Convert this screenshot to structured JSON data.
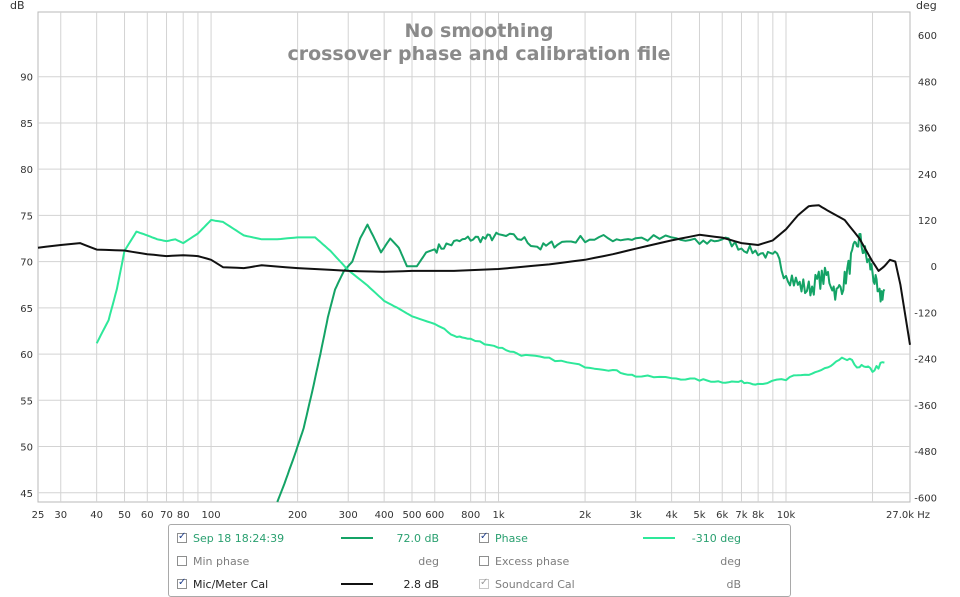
{
  "title": {
    "line1": "No smoothing",
    "line2": "crossover phase and calibration file"
  },
  "left_unit": "dB",
  "right_unit": "deg",
  "chart_data": {
    "type": "line",
    "x_scale": "log",
    "xlim": [
      25,
      27000
    ],
    "ylim_left": [
      44,
      97
    ],
    "ylim_right": [
      -612,
      660
    ],
    "x_ticks": [
      {
        "v": 25,
        "label": "25"
      },
      {
        "v": 30,
        "label": "30"
      },
      {
        "v": 40,
        "label": "40"
      },
      {
        "v": 50,
        "label": "50"
      },
      {
        "v": 60,
        "label": "60"
      },
      {
        "v": 70,
        "label": "70"
      },
      {
        "v": 80,
        "label": "80"
      },
      {
        "v": 100,
        "label": "100"
      },
      {
        "v": 200,
        "label": "200"
      },
      {
        "v": 300,
        "label": "300"
      },
      {
        "v": 400,
        "label": "400"
      },
      {
        "v": 500,
        "label": "500"
      },
      {
        "v": 600,
        "label": "600"
      },
      {
        "v": 800,
        "label": "800"
      },
      {
        "v": 1000,
        "label": "1k"
      },
      {
        "v": 2000,
        "label": "2k"
      },
      {
        "v": 3000,
        "label": "3k"
      },
      {
        "v": 4000,
        "label": "4k"
      },
      {
        "v": 5000,
        "label": "5k"
      },
      {
        "v": 6000,
        "label": "6k"
      },
      {
        "v": 7000,
        "label": "7k"
      },
      {
        "v": 8000,
        "label": "8k"
      },
      {
        "v": 10000,
        "label": "10k"
      },
      {
        "v": 27000,
        "label": "27.0k Hz"
      }
    ],
    "x_grid_minor": [
      90,
      900,
      9000,
      20000
    ],
    "y_ticks_left": [
      45,
      50,
      55,
      60,
      65,
      70,
      75,
      80,
      85,
      90
    ],
    "y_ticks_right": [
      -600,
      -480,
      -360,
      -240,
      -120,
      0,
      120,
      240,
      360,
      480,
      600
    ],
    "series": [
      {
        "name": "Sep 18 18:24:39",
        "axis": "left",
        "color": "#14a366",
        "noise": 0.9,
        "points": [
          [
            170,
            44.0
          ],
          [
            180,
            46.0
          ],
          [
            195,
            49.0
          ],
          [
            210,
            52.0
          ],
          [
            225,
            56.0
          ],
          [
            240,
            60.0
          ],
          [
            255,
            64.0
          ],
          [
            270,
            67.0
          ],
          [
            290,
            69.0
          ],
          [
            310,
            70.0
          ],
          [
            330,
            72.5
          ],
          [
            350,
            74.0
          ],
          [
            370,
            72.5
          ],
          [
            390,
            71.0
          ],
          [
            420,
            72.5
          ],
          [
            450,
            71.5
          ],
          [
            480,
            69.5
          ],
          [
            520,
            69.5
          ],
          [
            560,
            71.0
          ],
          [
            620,
            71.5
          ],
          [
            700,
            72.0
          ],
          [
            800,
            72.5
          ],
          [
            900,
            72.5
          ],
          [
            1000,
            72.8
          ],
          [
            1200,
            72.5
          ],
          [
            1400,
            71.5
          ],
          [
            1600,
            72.0
          ],
          [
            2000,
            72.5
          ],
          [
            2500,
            72.5
          ],
          [
            3000,
            72.5
          ],
          [
            4000,
            72.5
          ],
          [
            5000,
            72.0
          ],
          [
            6000,
            72.5
          ],
          [
            7000,
            71.5
          ],
          [
            8000,
            71.0
          ],
          [
            9000,
            70.5
          ],
          [
            10000,
            69.0
          ],
          [
            11000,
            67.5
          ],
          [
            12000,
            67.0
          ],
          [
            13000,
            68.0
          ],
          [
            14000,
            68.5
          ],
          [
            15000,
            66.5
          ],
          [
            16000,
            68.0
          ],
          [
            17000,
            70.5
          ],
          [
            18000,
            72.5
          ],
          [
            19000,
            70.5
          ],
          [
            20000,
            69.0
          ],
          [
            21000,
            66.0
          ],
          [
            22000,
            67.0
          ]
        ]
      },
      {
        "name": "Phase",
        "axis": "right",
        "color": "#2ee89a",
        "noise": 6,
        "points": [
          [
            40,
            -200
          ],
          [
            44,
            -140
          ],
          [
            47,
            -60
          ],
          [
            50,
            40
          ],
          [
            55,
            90
          ],
          [
            60,
            80
          ],
          [
            65,
            70
          ],
          [
            70,
            65
          ],
          [
            75,
            70
          ],
          [
            80,
            60
          ],
          [
            90,
            85
          ],
          [
            100,
            120
          ],
          [
            110,
            115
          ],
          [
            130,
            80
          ],
          [
            150,
            70
          ],
          [
            170,
            70
          ],
          [
            200,
            75
          ],
          [
            230,
            75
          ],
          [
            260,
            40
          ],
          [
            300,
            -10
          ],
          [
            350,
            -50
          ],
          [
            400,
            -90
          ],
          [
            450,
            -110
          ],
          [
            500,
            -130
          ],
          [
            600,
            -150
          ],
          [
            700,
            -180
          ],
          [
            800,
            -190
          ],
          [
            1000,
            -210
          ],
          [
            1200,
            -230
          ],
          [
            1500,
            -240
          ],
          [
            2000,
            -260
          ],
          [
            2500,
            -270
          ],
          [
            3000,
            -285
          ],
          [
            4000,
            -290
          ],
          [
            5000,
            -295
          ],
          [
            6000,
            -300
          ],
          [
            7000,
            -300
          ],
          [
            8000,
            -305
          ],
          [
            10000,
            -295
          ],
          [
            12000,
            -280
          ],
          [
            14000,
            -265
          ],
          [
            16000,
            -240
          ],
          [
            18000,
            -260
          ],
          [
            20000,
            -270
          ],
          [
            22000,
            -250
          ]
        ]
      },
      {
        "name": "Mic/Meter Cal",
        "axis": "left",
        "color": "#111111",
        "noise": 0,
        "points": [
          [
            25,
            71.5
          ],
          [
            30,
            71.8
          ],
          [
            35,
            72.0
          ],
          [
            40,
            71.3
          ],
          [
            50,
            71.2
          ],
          [
            60,
            70.8
          ],
          [
            70,
            70.6
          ],
          [
            80,
            70.7
          ],
          [
            90,
            70.6
          ],
          [
            100,
            70.2
          ],
          [
            110,
            69.4
          ],
          [
            130,
            69.3
          ],
          [
            150,
            69.6
          ],
          [
            200,
            69.3
          ],
          [
            300,
            69.0
          ],
          [
            400,
            68.9
          ],
          [
            500,
            69.0
          ],
          [
            700,
            69.0
          ],
          [
            1000,
            69.2
          ],
          [
            1500,
            69.7
          ],
          [
            2000,
            70.2
          ],
          [
            2500,
            70.8
          ],
          [
            3000,
            71.4
          ],
          [
            4000,
            72.3
          ],
          [
            5000,
            72.9
          ],
          [
            6000,
            72.6
          ],
          [
            7000,
            72.0
          ],
          [
            8000,
            71.8
          ],
          [
            9000,
            72.3
          ],
          [
            10000,
            73.5
          ],
          [
            11000,
            75.0
          ],
          [
            12000,
            76.0
          ],
          [
            13000,
            76.1
          ],
          [
            14000,
            75.5
          ],
          [
            16000,
            74.5
          ],
          [
            18000,
            72.5
          ],
          [
            20000,
            70.0
          ],
          [
            21000,
            69.0
          ],
          [
            22000,
            69.5
          ],
          [
            23000,
            70.2
          ],
          [
            24000,
            70.0
          ],
          [
            25000,
            67.5
          ],
          [
            27000,
            61.0
          ]
        ]
      }
    ]
  },
  "legend": {
    "rows": [
      {
        "left": {
          "label": "Sep 18 18:24:39",
          "checked": true,
          "swatch": "#14a366",
          "value": "72.0 dB"
        },
        "right": {
          "label": "Phase",
          "checked": true,
          "swatch": "#2ee89a",
          "value": "-310 deg"
        }
      },
      {
        "left": {
          "label": "Min phase",
          "checked": false,
          "swatch": "",
          "value": "deg"
        },
        "right": {
          "label": "Excess phase",
          "checked": false,
          "swatch": "",
          "value": "deg"
        }
      },
      {
        "left": {
          "label": "Mic/Meter Cal",
          "checked": true,
          "swatch": "#111111",
          "value": "2.8 dB"
        },
        "right": {
          "label": "Soundcard Cal",
          "checked": true,
          "swatch": "",
          "value": "dB"
        }
      }
    ]
  }
}
